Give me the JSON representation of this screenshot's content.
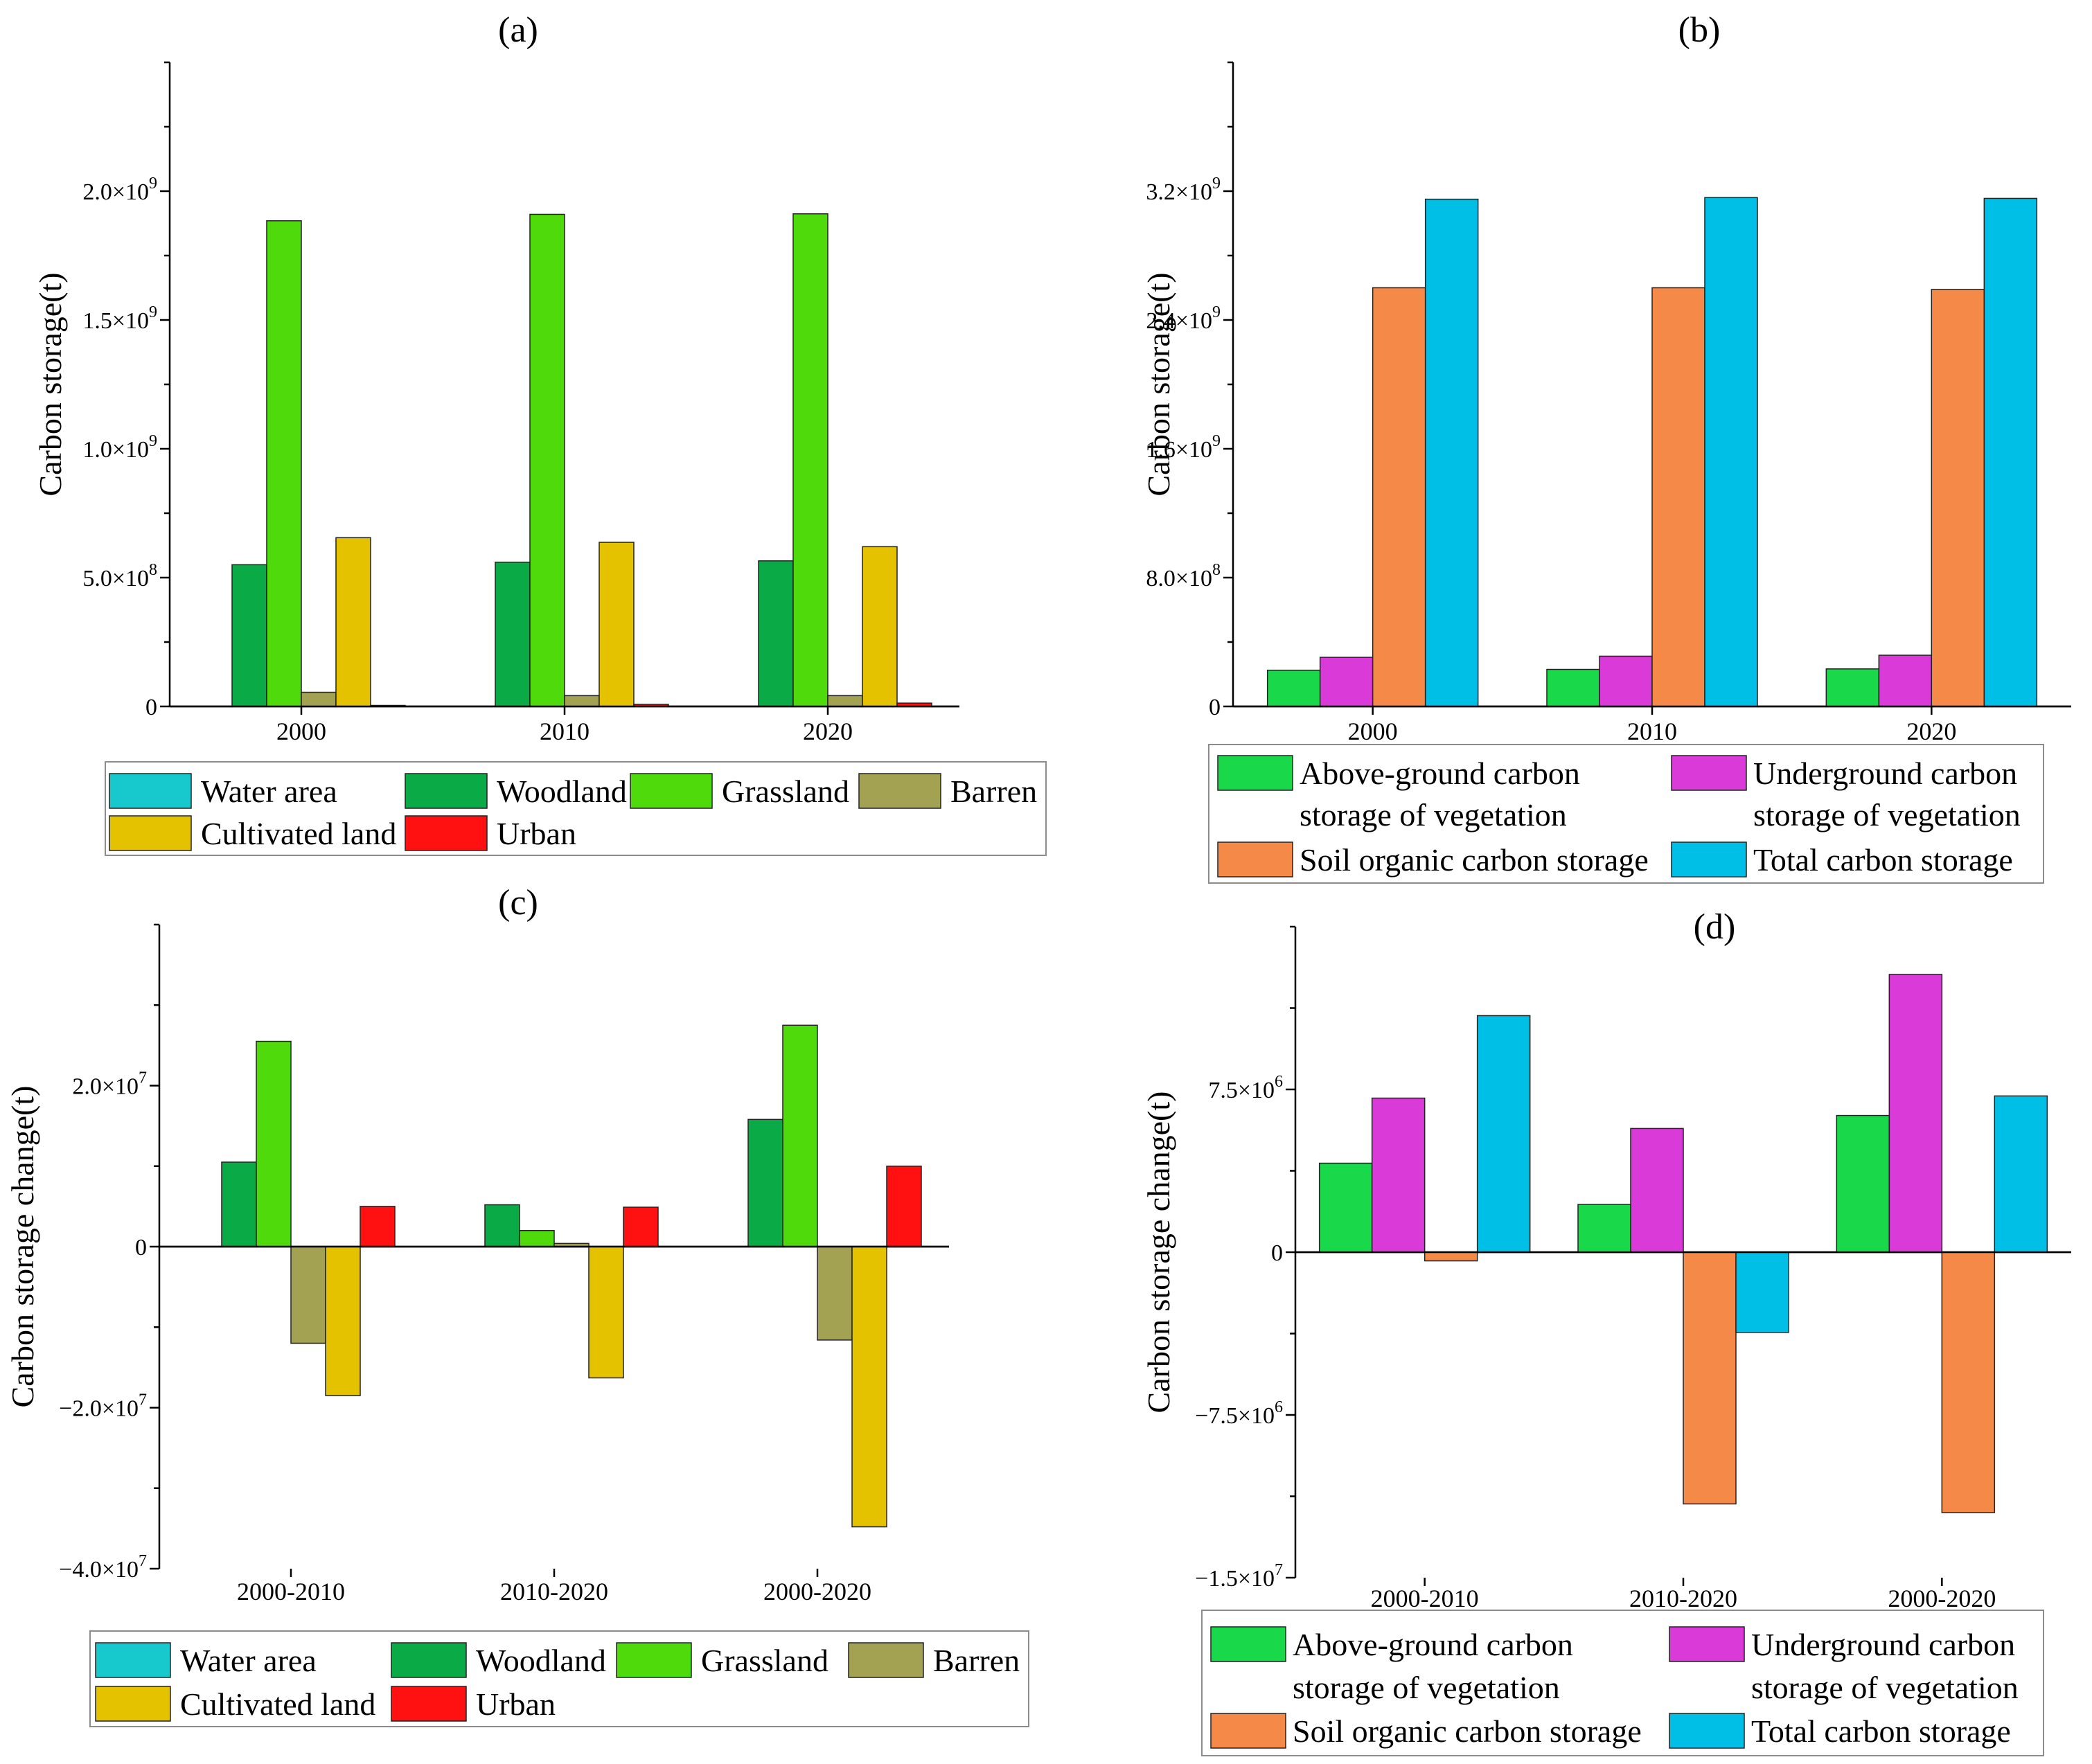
{
  "chart_data": [
    {
      "id": "a",
      "type": "bar",
      "title": "(a)",
      "ylabel": "Carbon storage(t)",
      "ylim": [
        0,
        2500000000
      ],
      "ytick_values": [
        0,
        500000000,
        1000000000,
        1500000000,
        2000000000
      ],
      "ytick_labels": [
        {
          "mantissa": "0",
          "exponent": ""
        },
        {
          "mantissa": "5.0×10",
          "exponent": "8"
        },
        {
          "mantissa": "1.0×10",
          "exponent": "9"
        },
        {
          "mantissa": "1.5×10",
          "exponent": "9"
        },
        {
          "mantissa": "2.0×10",
          "exponent": "9"
        }
      ],
      "categories": [
        "2000",
        "2010",
        "2020"
      ],
      "series": [
        {
          "name": "Water area",
          "color": "#17c8cc",
          "values": [
            0,
            0,
            0
          ]
        },
        {
          "name": "Woodland",
          "color": "#0aab46",
          "values": [
            550000000,
            560000000,
            565000000
          ]
        },
        {
          "name": "Grassland",
          "color": "#4fdb0b",
          "values": [
            1885000000,
            1910000000,
            1912000000
          ]
        },
        {
          "name": "Barren",
          "color": "#a3a252",
          "values": [
            55000000,
            42000000,
            42000000
          ]
        },
        {
          "name": "Cultivated land",
          "color": "#e5c200",
          "values": [
            655000000,
            637000000,
            620000000
          ]
        },
        {
          "name": "Urban",
          "color": "#ff1111",
          "values": [
            4000000,
            8000000,
            13000000
          ]
        }
      ],
      "legend_rows": [
        [
          0,
          1,
          2,
          3
        ],
        [
          4,
          5
        ]
      ]
    },
    {
      "id": "b",
      "type": "bar",
      "title": "(b)",
      "ylabel": "Carbon storage(t)",
      "ylim": [
        0,
        4000000000
      ],
      "ytick_values": [
        0,
        800000000,
        1600000000,
        2400000000,
        3200000000
      ],
      "ytick_labels": [
        {
          "mantissa": "0",
          "exponent": ""
        },
        {
          "mantissa": "8.0×10",
          "exponent": "8"
        },
        {
          "mantissa": "1.6×10",
          "exponent": "9"
        },
        {
          "mantissa": "2.4×10",
          "exponent": "9"
        },
        {
          "mantissa": "3.2×10",
          "exponent": "9"
        }
      ],
      "categories": [
        "2000",
        "2010",
        "2020"
      ],
      "series": [
        {
          "name": "Above-ground carbon storage of vegetation",
          "name_lines": [
            "Above-ground carbon",
            "storage of vegetation"
          ],
          "color": "#19d84a",
          "values": [
            225000000,
            230000000,
            233000000
          ]
        },
        {
          "name": "Underground carbon storage of vegetation",
          "name_lines": [
            "Underground carbon",
            "storage of vegetation"
          ],
          "color": "#d93ad8",
          "values": [
            305000000,
            312000000,
            318000000
          ]
        },
        {
          "name": "Soil organic carbon storage",
          "name_lines": [
            "Soil organic carbon storage"
          ],
          "color": "#f58a48",
          "values": [
            2600000000,
            2600000000,
            2590000000
          ]
        },
        {
          "name": "Total carbon storage",
          "name_lines": [
            "Total carbon storage"
          ],
          "color": "#00bfe6",
          "values": [
            3150000000,
            3160000000,
            3155000000
          ]
        }
      ]
    },
    {
      "id": "c",
      "type": "bar",
      "title": "(c)",
      "ylabel": "Carbon storage change(t)",
      "ylim": [
        -40000000,
        40000000
      ],
      "ytick_values": [
        -40000000,
        -20000000,
        0,
        20000000
      ],
      "ytick_labels": [
        {
          "mantissa": "−4.0×10",
          "exponent": "7"
        },
        {
          "mantissa": "−2.0×10",
          "exponent": "7"
        },
        {
          "mantissa": "0",
          "exponent": ""
        },
        {
          "mantissa": "2.0×10",
          "exponent": "7"
        }
      ],
      "categories": [
        "2000-2010",
        "2010-2020",
        "2000-2020"
      ],
      "series": [
        {
          "name": "Water area",
          "color": "#17c8cc",
          "values": [
            0,
            0,
            0
          ]
        },
        {
          "name": "Woodland",
          "color": "#0aab46",
          "values": [
            10500000,
            5200000,
            15800000
          ]
        },
        {
          "name": "Grassland",
          "color": "#4fdb0b",
          "values": [
            25500000,
            2000000,
            27500000
          ]
        },
        {
          "name": "Barren",
          "color": "#a3a252",
          "values": [
            -12000000,
            400000,
            -11600000
          ]
        },
        {
          "name": "Cultivated land",
          "color": "#e5c200",
          "values": [
            -18500000,
            -16300000,
            -34800000
          ]
        },
        {
          "name": "Urban",
          "color": "#ff1111",
          "values": [
            5000000,
            4900000,
            10000000
          ]
        }
      ],
      "legend_rows": [
        [
          0,
          1,
          2,
          3
        ],
        [
          4,
          5
        ]
      ]
    },
    {
      "id": "d",
      "type": "bar",
      "title": "(d)",
      "ylabel": "Carbon storage change(t)",
      "ylim": [
        -15000000,
        15000000
      ],
      "ytick_values": [
        -15000000,
        -7500000,
        0,
        7500000
      ],
      "ytick_labels": [
        {
          "mantissa": "−1.5×10",
          "exponent": "7"
        },
        {
          "mantissa": "−7.5×10",
          "exponent": "6"
        },
        {
          "mantissa": "0",
          "exponent": ""
        },
        {
          "mantissa": "7.5×10",
          "exponent": "6"
        }
      ],
      "categories": [
        "2000-2010",
        "2010-2020",
        "2000-2020"
      ],
      "series": [
        {
          "name": "Above-ground carbon storage of vegetation",
          "name_lines": [
            "Above-ground carbon",
            "storage of vegetation"
          ],
          "color": "#19d84a",
          "values": [
            4100000,
            2200000,
            6300000
          ]
        },
        {
          "name": "Underground carbon storage of vegetation",
          "name_lines": [
            "Underground carbon",
            "storage of vegetation"
          ],
          "color": "#d93ad8",
          "values": [
            7100000,
            5700000,
            12800000
          ]
        },
        {
          "name": "Soil organic carbon storage",
          "name_lines": [
            "Soil organic carbon storage"
          ],
          "color": "#f58a48",
          "values": [
            -400000,
            -11600000,
            -12000000
          ]
        },
        {
          "name": "Total carbon storage",
          "name_lines": [
            "Total carbon storage"
          ],
          "color": "#00bfe6",
          "values": [
            10900000,
            -3700000,
            7200000
          ]
        }
      ]
    }
  ]
}
